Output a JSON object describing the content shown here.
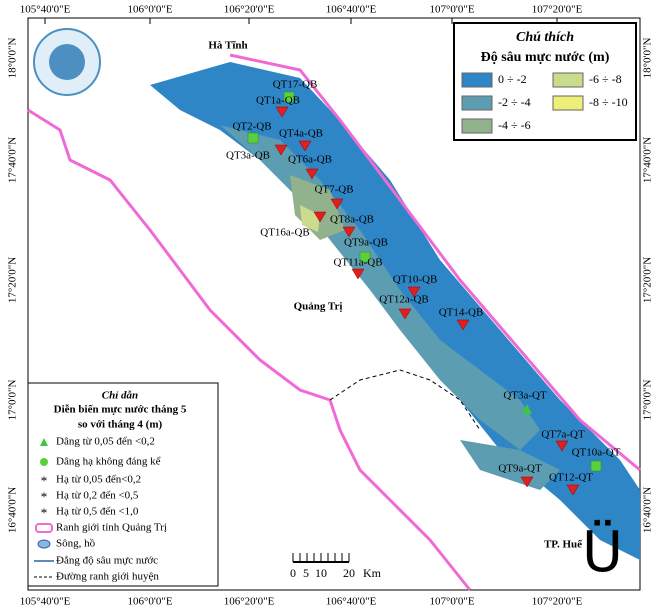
{
  "map": {
    "lon_labels": [
      "105°40'0\"E",
      "106°0'0\"E",
      "106°20'0\"E",
      "106°40'0\"E",
      "107°0'0\"E",
      "107°20'0\"E"
    ],
    "lat_labels": [
      "18°0'0\"N",
      "17°40'0\"N",
      "17°20'0\"N",
      "17°0'0\"N",
      "16°40'0\"N"
    ],
    "places": [
      "Hà Tĩnh",
      "Quảng Trị",
      "TP. Huế"
    ],
    "stations": [
      "QT17-QB",
      "QT1a-QB",
      "QT2-QB",
      "QT4a-QB",
      "QT3a-QB",
      "QT6a-QB",
      "QT7-QB",
      "QT8a-QB",
      "QT16a-QB",
      "QT9a-QB",
      "QT11a-QB",
      "QT10-QB",
      "QT12a-QB",
      "QT14-QB",
      "QT3a-QT",
      "QT7a-QT",
      "QT10a-QT",
      "QT9a-QT",
      "QT12-QT"
    ],
    "depth_legend": {
      "title": "Chú thích",
      "subtitle": "Độ sâu mực nước (m)",
      "items": [
        {
          "label": "0 ÷ -2",
          "color": "#2f86c6"
        },
        {
          "label": "-2 ÷ -4",
          "color": "#5c9db2"
        },
        {
          "label": "-4 ÷ -6",
          "color": "#91b28c"
        },
        {
          "label": "-6 ÷ -8",
          "color": "#cbdc8e"
        },
        {
          "label": "-8 ÷ -10",
          "color": "#eeee78"
        }
      ]
    },
    "guide_legend": {
      "title": "Chỉ dẫn",
      "subtitle_1": "Diễn biến mực nước tháng 5",
      "subtitle_2": "so với tháng 4 (m)",
      "items": [
        "Dâng từ 0,05 đến <0,2",
        "Dâng hạ không đáng kể",
        "Hạ từ 0,05 đến<0,2",
        "Hạ từ 0,2 đến <0,5",
        "Hạ từ 0,5 đến <1,0",
        "Ranh giới tỉnh Quảng Trị",
        "Sông, hồ",
        "Đẳng độ sâu mực nước",
        "Đường ranh giới huyện"
      ]
    },
    "scale_bar": {
      "labels": [
        "0",
        "5",
        "10",
        "20"
      ],
      "unit": "Km"
    },
    "north_arrow": "Ü"
  }
}
